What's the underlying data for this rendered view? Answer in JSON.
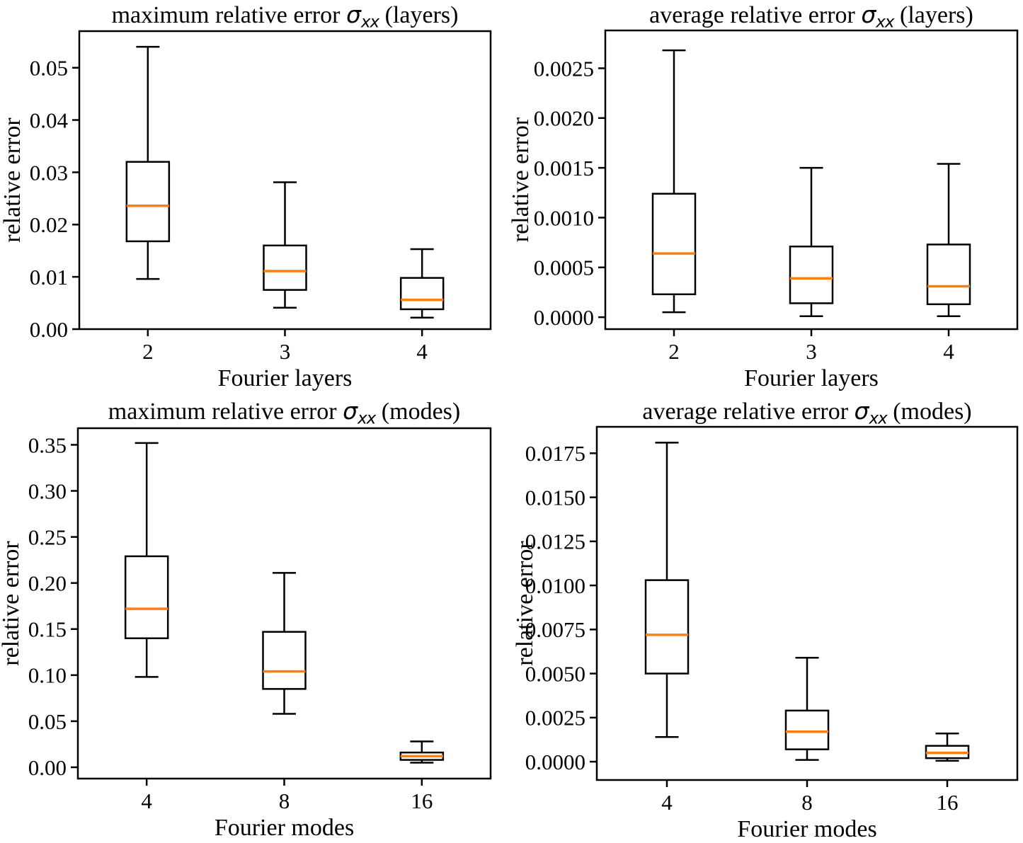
{
  "figure": {
    "background": "#ffffff",
    "grid": "off",
    "legend": "none",
    "colors": {
      "box_line": "#000000",
      "median_line": "#ff7f0e",
      "text": "#000000"
    }
  },
  "chart_data": [
    {
      "type": "boxplot",
      "title_prefix": "maximum relative error ",
      "title_sigma": "σ",
      "title_subscript": "xx",
      "title_suffix": " (layers)",
      "xlabel": "Fourier layers",
      "ylabel": "relative error",
      "categories": [
        "2",
        "3",
        "4"
      ],
      "ylim": [
        0.0,
        0.057
      ],
      "yticks": [
        {
          "value": 0.0,
          "label": "0.00"
        },
        {
          "value": 0.01,
          "label": "0.01"
        },
        {
          "value": 0.02,
          "label": "0.02"
        },
        {
          "value": 0.03,
          "label": "0.03"
        },
        {
          "value": 0.04,
          "label": "0.04"
        },
        {
          "value": 0.05,
          "label": "0.05"
        }
      ],
      "boxes": [
        {
          "whislo": 0.0096,
          "q1": 0.0168,
          "med": 0.0236,
          "q3": 0.032,
          "whishi": 0.054
        },
        {
          "whislo": 0.0041,
          "q1": 0.0075,
          "med": 0.0111,
          "q3": 0.016,
          "whishi": 0.0281
        },
        {
          "whislo": 0.0022,
          "q1": 0.0038,
          "med": 0.0056,
          "q3": 0.0098,
          "whishi": 0.0153
        }
      ]
    },
    {
      "type": "boxplot",
      "title_prefix": "average relative error ",
      "title_sigma": "σ",
      "title_subscript": "xx",
      "title_suffix": " (layers)",
      "xlabel": "Fourier layers",
      "ylabel": "relative error",
      "categories": [
        "2",
        "3",
        "4"
      ],
      "ylim": [
        -0.00012,
        0.00288
      ],
      "yticks": [
        {
          "value": 0.0,
          "label": "0.0000"
        },
        {
          "value": 0.0005,
          "label": "0.0005"
        },
        {
          "value": 0.001,
          "label": "0.0010"
        },
        {
          "value": 0.0015,
          "label": "0.0015"
        },
        {
          "value": 0.002,
          "label": "0.0020"
        },
        {
          "value": 0.0025,
          "label": "0.0025"
        }
      ],
      "boxes": [
        {
          "whislo": 5e-05,
          "q1": 0.00023,
          "med": 0.00064,
          "q3": 0.00124,
          "whishi": 0.00268
        },
        {
          "whislo": 1e-05,
          "q1": 0.00014,
          "med": 0.00039,
          "q3": 0.00071,
          "whishi": 0.0015
        },
        {
          "whislo": 1e-05,
          "q1": 0.00013,
          "med": 0.00031,
          "q3": 0.00073,
          "whishi": 0.00154
        }
      ]
    },
    {
      "type": "boxplot",
      "title_prefix": "maximum relative error ",
      "title_sigma": "σ",
      "title_subscript": "xx",
      "title_suffix": " (modes)",
      "xlabel": "Fourier modes",
      "ylabel": "relative error",
      "categories": [
        "4",
        "8",
        "16"
      ],
      "ylim": [
        -0.0123,
        0.368
      ],
      "yticks": [
        {
          "value": 0.0,
          "label": "0.00"
        },
        {
          "value": 0.05,
          "label": "0.05"
        },
        {
          "value": 0.1,
          "label": "0.10"
        },
        {
          "value": 0.15,
          "label": "0.15"
        },
        {
          "value": 0.2,
          "label": "0.20"
        },
        {
          "value": 0.25,
          "label": "0.25"
        },
        {
          "value": 0.3,
          "label": "0.30"
        },
        {
          "value": 0.35,
          "label": "0.35"
        }
      ],
      "boxes": [
        {
          "whislo": 0.098,
          "q1": 0.14,
          "med": 0.172,
          "q3": 0.229,
          "whishi": 0.352
        },
        {
          "whislo": 0.058,
          "q1": 0.085,
          "med": 0.104,
          "q3": 0.147,
          "whishi": 0.211
        },
        {
          "whislo": 0.005,
          "q1": 0.008,
          "med": 0.012,
          "q3": 0.016,
          "whishi": 0.028
        }
      ]
    },
    {
      "type": "boxplot",
      "title_prefix": "average relative error ",
      "title_sigma": "σ",
      "title_subscript": "xx",
      "title_suffix": " (modes)",
      "xlabel": "Fourier modes",
      "ylabel": "relative error",
      "categories": [
        "4",
        "8",
        "16"
      ],
      "ylim": [
        -0.00104,
        0.019
      ],
      "yticks": [
        {
          "value": 0.0,
          "label": "0.0000"
        },
        {
          "value": 0.0025,
          "label": "0.0025"
        },
        {
          "value": 0.005,
          "label": "0.0050"
        },
        {
          "value": 0.0075,
          "label": "0.0075"
        },
        {
          "value": 0.01,
          "label": "0.0100"
        },
        {
          "value": 0.0125,
          "label": "0.0125"
        },
        {
          "value": 0.015,
          "label": "0.0150"
        },
        {
          "value": 0.0175,
          "label": "0.0175"
        }
      ],
      "boxes": [
        {
          "whislo": 0.0014,
          "q1": 0.005,
          "med": 0.0072,
          "q3": 0.0103,
          "whishi": 0.0181
        },
        {
          "whislo": 0.0001,
          "q1": 0.0007,
          "med": 0.0017,
          "q3": 0.0029,
          "whishi": 0.0059
        },
        {
          "whislo": 5e-05,
          "q1": 0.0002,
          "med": 0.0005,
          "q3": 0.0009,
          "whishi": 0.0016
        }
      ]
    }
  ]
}
